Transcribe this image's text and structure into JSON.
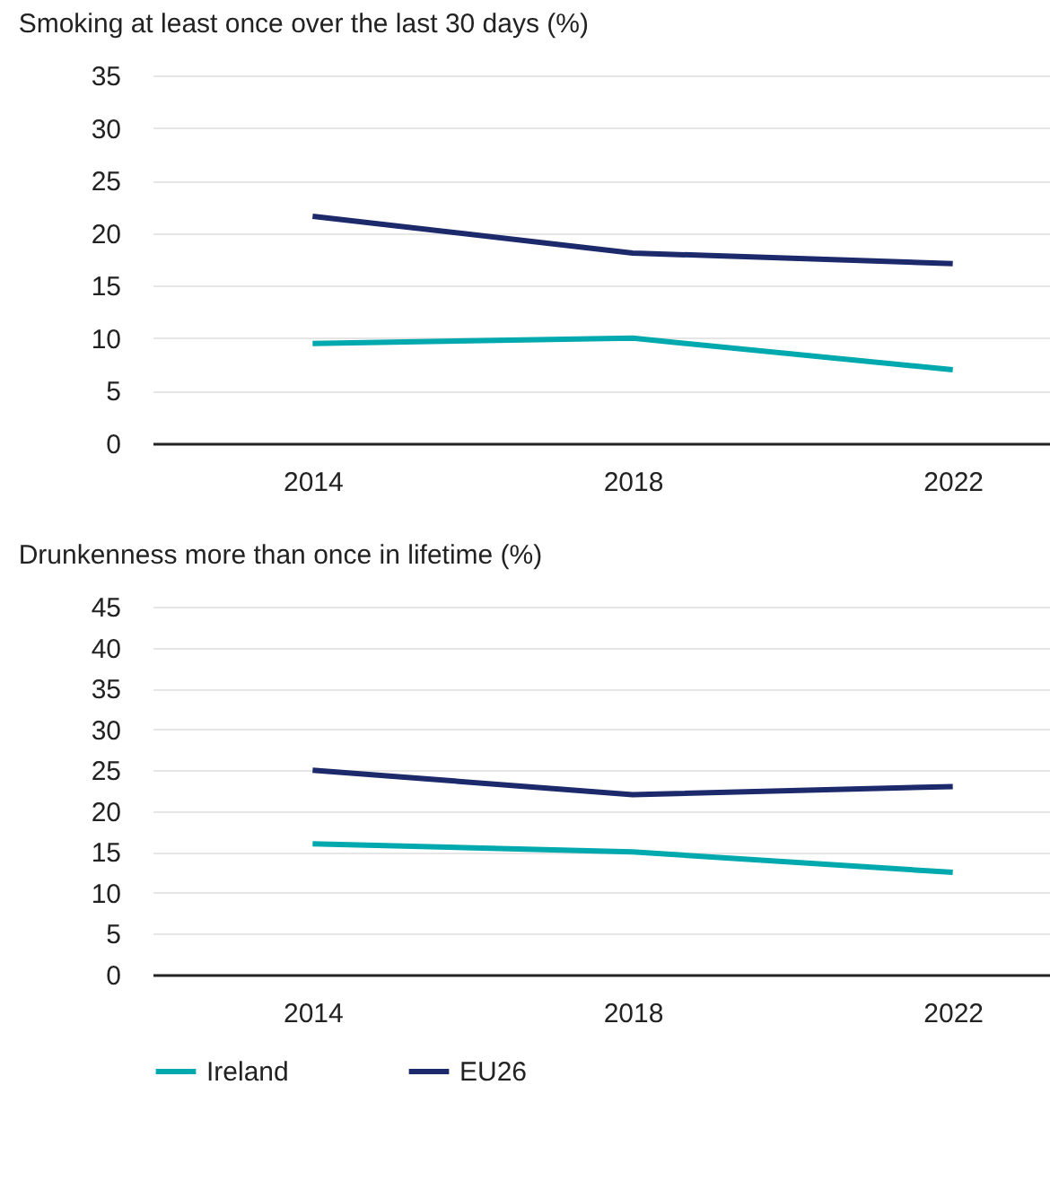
{
  "chart_data": [
    {
      "type": "line",
      "title": "Smoking at least once over the last 30 days (%)",
      "categories": [
        "2014",
        "2018",
        "2022"
      ],
      "series": [
        {
          "color": "#00a9ae",
          "values": [
            9.5,
            10,
            7
          ]
        },
        {
          "color": "#1c2a6b",
          "values": [
            21.6,
            18.1,
            17.1
          ]
        }
      ],
      "ylim": [
        0,
        35
      ],
      "yticks": [
        0,
        5,
        10,
        15,
        20,
        25,
        30,
        35
      ],
      "grid": "y",
      "legend": false,
      "marker": "none"
    },
    {
      "type": "line",
      "title": "Drunkenness more than once in lifetime (%)",
      "categories": [
        "2014",
        "2018",
        "2022"
      ],
      "series": [
        {
          "name": "Ireland",
          "color": "#00a9ae",
          "values": [
            16,
            15,
            12.5
          ]
        },
        {
          "name": "EU26",
          "color": "#1c2a6b",
          "values": [
            25,
            22,
            23
          ]
        }
      ],
      "ylim": [
        0,
        45
      ],
      "yticks": [
        0,
        5,
        10,
        15,
        20,
        25,
        30,
        35,
        40,
        45
      ],
      "grid": "y",
      "legend": "bottom",
      "marker": "none"
    }
  ]
}
